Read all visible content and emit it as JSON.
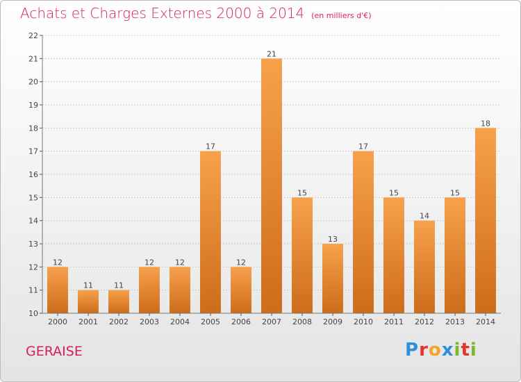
{
  "title": "Achats et Charges Externes 2000 à 2014",
  "unit_note": "(en milliers d'€)",
  "commune": "GERAISE",
  "logo": {
    "text": "Proxiti",
    "colors": [
      "#2f8fd8",
      "#e2342d",
      "#f2a623",
      "#2f8fd8",
      "#79b82b",
      "#e2342d",
      "#79b82b"
    ]
  },
  "colors": {
    "accent": "#d51f5a",
    "bar_light": "#f7a14b",
    "bar_dark": "#cd6c1b",
    "grid": "#cccccc"
  },
  "chart_data": {
    "type": "bar",
    "title": "Achats et Charges Externes 2000 à 2014",
    "categories": [
      "2000",
      "2001",
      "2002",
      "2003",
      "2004",
      "2005",
      "2006",
      "2007",
      "2008",
      "2009",
      "2010",
      "2011",
      "2012",
      "2013",
      "2014"
    ],
    "values": [
      12,
      11,
      11,
      12,
      12,
      17,
      12,
      21,
      15,
      13,
      17,
      15,
      14,
      15,
      18
    ],
    "ylim": [
      10,
      22
    ],
    "yticks": [
      10,
      11,
      12,
      13,
      14,
      15,
      16,
      17,
      18,
      19,
      20,
      21,
      22
    ],
    "grid": true,
    "data_labels": true
  }
}
